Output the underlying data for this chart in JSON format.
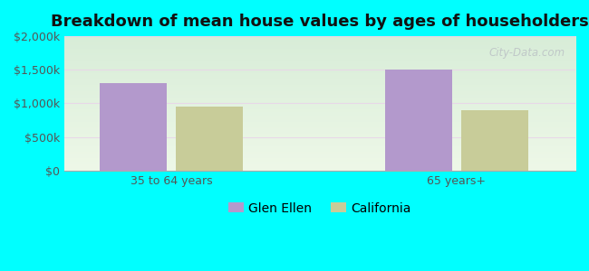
{
  "title": "Breakdown of mean house values by ages of householders",
  "categories": [
    "35 to 64 years",
    "65 years+"
  ],
  "series": [
    {
      "name": "Glen Ellen",
      "values": [
        1300000,
        1500000
      ],
      "color": "#b399cc"
    },
    {
      "name": "California",
      "values": [
        950000,
        900000
      ],
      "color": "#c8cc99"
    }
  ],
  "ylim": [
    0,
    2000000
  ],
  "yticks": [
    0,
    500000,
    1000000,
    1500000,
    2000000
  ],
  "ytick_labels": [
    "$0",
    "$500k",
    "$1,000k",
    "$1,500k",
    "$2,000k"
  ],
  "bar_width": 0.28,
  "background_outer": "#00FFFF",
  "background_top": "#d8edd8",
  "background_bottom": "#eef8e8",
  "grid_color": "#e0eee0",
  "watermark": "City-Data.com",
  "title_fontsize": 13,
  "tick_fontsize": 9,
  "legend_fontsize": 10,
  "group_positions": [
    0.5,
    1.7
  ],
  "xlim": [
    0.05,
    2.2
  ]
}
